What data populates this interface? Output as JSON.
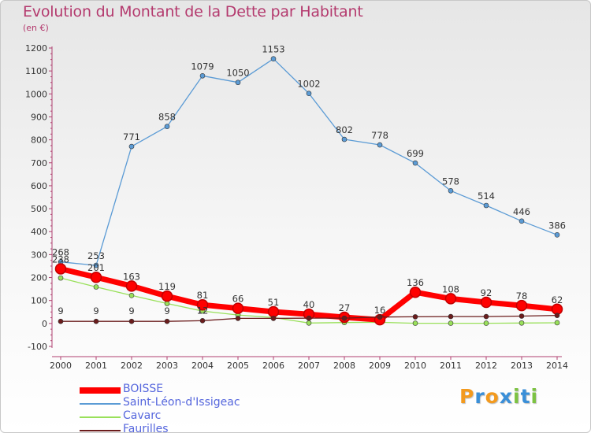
{
  "chart_data": {
    "type": "line",
    "title": "Evolution du Montant de la Dette par Habitant",
    "subtitle": "(en €)",
    "xlabel": "",
    "ylabel": "",
    "ylim": [
      -100,
      1200
    ],
    "yticks": [
      -100,
      0,
      100,
      200,
      300,
      400,
      500,
      600,
      700,
      800,
      900,
      1000,
      1100,
      1200
    ],
    "grid": false,
    "legend_position": "bottom-left",
    "x": [
      "2000",
      "2001",
      "2002",
      "2003",
      "2004",
      "2005",
      "2006",
      "2007",
      "2008",
      "2009",
      "2010",
      "2011",
      "2012",
      "2013",
      "2014"
    ],
    "series": [
      {
        "name": "BOISSE",
        "color": "#ff0000",
        "style": "thick",
        "values": [
          238,
          201,
          163,
          119,
          81,
          66,
          51,
          40,
          27,
          16,
          136,
          108,
          92,
          78,
          62
        ],
        "labels": [
          "238",
          "201",
          "163",
          "119",
          "81",
          "66",
          "51",
          "40",
          "27",
          "16",
          "136",
          "108",
          "92",
          "78",
          "62"
        ]
      },
      {
        "name": "Saint-Léon-d'Issigeac",
        "color": "#5b9bd5",
        "style": "thin",
        "values": [
          268,
          253,
          771,
          858,
          1079,
          1050,
          1153,
          1002,
          802,
          778,
          699,
          578,
          514,
          446,
          386
        ],
        "labels": [
          "268",
          "253",
          "771",
          "858",
          "1079",
          "1050",
          "1153",
          "1002",
          "802",
          "778",
          "699",
          "578",
          "514",
          "446",
          "386"
        ]
      },
      {
        "name": "Cavarc",
        "color": "#99e05a",
        "style": "thin",
        "values": [
          198,
          159,
          122,
          87,
          54,
          37,
          26,
          2,
          4,
          5,
          1,
          1,
          1,
          2,
          3
        ],
        "labels": []
      },
      {
        "name": "Faurilles",
        "color": "#6b1c1c",
        "style": "thin",
        "values": [
          9,
          9,
          9,
          9,
          12,
          22,
          22,
          23,
          23,
          28,
          29,
          30,
          30,
          32,
          35
        ],
        "labels": [
          "9",
          "9",
          "9",
          "9",
          "12",
          "",
          "",
          "",
          "",
          "",
          "",
          "",
          "",
          "",
          ""
        ]
      }
    ]
  },
  "logo": {
    "letters": [
      {
        "ch": "P",
        "color": "#f39a1e"
      },
      {
        "ch": "r",
        "color": "#3a8fd8"
      },
      {
        "ch": "o",
        "color": "#f39a1e"
      },
      {
        "ch": "x",
        "color": "#3a8fd8"
      },
      {
        "ch": "i",
        "color": "#7cc242"
      },
      {
        "ch": "t",
        "color": "#3a8fd8"
      },
      {
        "ch": "i",
        "color": "#7cc242"
      }
    ]
  }
}
